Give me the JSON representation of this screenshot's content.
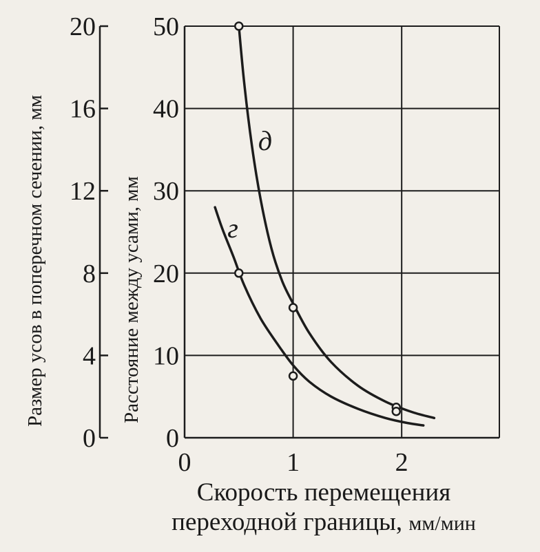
{
  "chart_data": {
    "type": "line",
    "xlabel_line1": "Скорость перемещения",
    "xlabel_line2_main": "переходной границы, ",
    "xlabel_line2_units": "мм/мин",
    "ylabel_left": "Размер усов в поперечном сечении, мм",
    "ylabel_right": "Расстояние между усами, мм",
    "x_ticks": [
      "0",
      "1",
      "2"
    ],
    "y_ticks_inner": [
      "0",
      "10",
      "20",
      "30",
      "40",
      "50"
    ],
    "y_ticks_outer": [
      "0",
      "4",
      "8",
      "12",
      "16",
      "20"
    ],
    "xlim": [
      0,
      2.9
    ],
    "ylim": [
      0,
      50
    ],
    "ylim_outer": [
      0,
      20
    ],
    "grid": true,
    "series": [
      {
        "name": "д",
        "axis": "inner",
        "curve": {
          "x": [
            0.5,
            0.55,
            0.62,
            0.7,
            0.8,
            0.9,
            1.0,
            1.15,
            1.35,
            1.6,
            1.85,
            2.1,
            2.3
          ],
          "y": [
            50,
            43,
            35.5,
            29,
            23,
            19,
            16.3,
            12.7,
            9.2,
            6.3,
            4.4,
            3.1,
            2.4
          ]
        },
        "points": {
          "x": [
            0.5,
            1.0,
            1.95
          ],
          "y": [
            50,
            15.8,
            3.7
          ]
        }
      },
      {
        "name": "г",
        "axis": "inner",
        "curve": {
          "x": [
            0.28,
            0.35,
            0.45,
            0.55,
            0.7,
            0.85,
            1.0,
            1.15,
            1.35,
            1.6,
            1.85,
            2.05,
            2.2
          ],
          "y": [
            28,
            25.3,
            22,
            18.5,
            14.5,
            11.5,
            8.8,
            6.8,
            5,
            3.5,
            2.4,
            1.8,
            1.5
          ]
        },
        "points": {
          "x": [
            0.5,
            1.0,
            1.95
          ],
          "y": [
            20,
            7.5,
            3.2
          ]
        }
      }
    ]
  }
}
